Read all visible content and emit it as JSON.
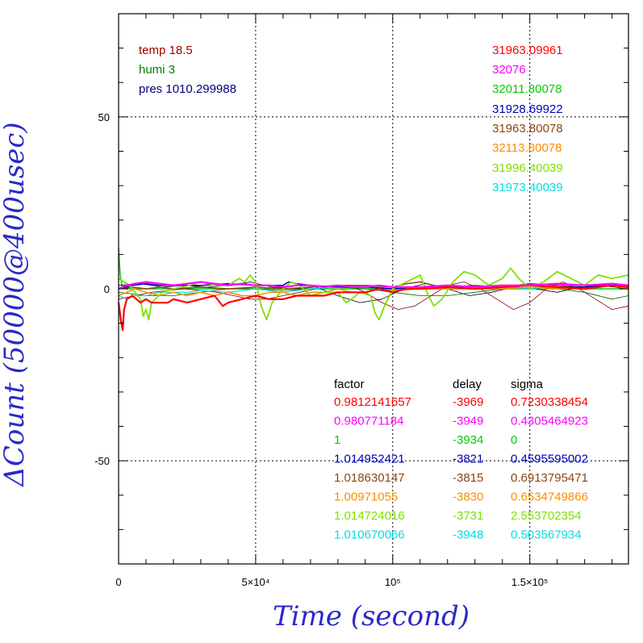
{
  "chart_data": {
    "type": "line",
    "xlabel": "Time (second)",
    "ylabel": "ΔCount (50000@400usec)",
    "xlim": [
      0,
      186000
    ],
    "ylim": [
      -80,
      80
    ],
    "grid": "dotted at labeled ticks",
    "x_ticks": [
      {
        "value": 0,
        "label": "0"
      },
      {
        "value": 50000,
        "label": "5×10⁴"
      },
      {
        "value": 100000,
        "label": "10⁵"
      },
      {
        "value": 150000,
        "label": "1.5×10⁵"
      }
    ],
    "y_ticks": [
      {
        "value": 50,
        "label": "50"
      },
      {
        "value": 0,
        "label": "0"
      },
      {
        "value": -50,
        "label": "-50"
      }
    ],
    "env": [
      {
        "text": "temp 18.5",
        "color": "#a00000"
      },
      {
        "text": "humi 3",
        "color": "#008000"
      },
      {
        "text": "pres 1010.299988",
        "color": "#000080"
      }
    ],
    "counts": [
      {
        "text": "31963.09961",
        "color": "#ff0000"
      },
      {
        "text": "32076",
        "color": "#ff00ff"
      },
      {
        "text": "32011.80078",
        "color": "#00cc00"
      },
      {
        "text": "31928.69922",
        "color": "#0000c0"
      },
      {
        "text": "31963.80078",
        "color": "#8b4513"
      },
      {
        "text": "32113.80078",
        "color": "#ff8c00"
      },
      {
        "text": "31996.40039",
        "color": "#7fe000"
      },
      {
        "text": "31973.40039",
        "color": "#00e0e0"
      }
    ],
    "table": {
      "headers": [
        "factor",
        "delay",
        "sigma"
      ],
      "rows": [
        {
          "factor": "0.9812141657",
          "delay": "-3969",
          "sigma": "0.7230338454",
          "color": "#ff0000"
        },
        {
          "factor": "0.980771184",
          "delay": "-3949",
          "sigma": "0.4305464923",
          "color": "#ff00ff"
        },
        {
          "factor": "1",
          "delay": "-3934",
          "sigma": "0",
          "color": "#00cc00"
        },
        {
          "factor": "1.014952421",
          "delay": "-3821",
          "sigma": "0.4595595002",
          "color": "#0000c0"
        },
        {
          "factor": "1.018630147",
          "delay": "-3815",
          "sigma": "0.6913795471",
          "color": "#8b4513"
        },
        {
          "factor": "1.00971055",
          "delay": "-3830",
          "sigma": "0.6534749866",
          "color": "#ff8c00"
        },
        {
          "factor": "1.014724016",
          "delay": "-3731",
          "sigma": "2.553702354",
          "color": "#7fe000"
        },
        {
          "factor": "1.010670066",
          "delay": "-3948",
          "sigma": "0.503567934",
          "color": "#00e0e0"
        }
      ]
    },
    "series": [
      {
        "color": "#00cc00",
        "width": 1.5,
        "x": [
          0,
          600,
          1200,
          2500,
          5000,
          10000,
          20000,
          35000,
          50000,
          70000,
          90000,
          110000,
          130000,
          150000,
          170000,
          186000
        ],
        "y": [
          12,
          4,
          1,
          0,
          0,
          0,
          0,
          0,
          0,
          0,
          0,
          0,
          0,
          0,
          0,
          0
        ]
      },
      {
        "color": "#000000",
        "width": 0.8,
        "x": [
          0,
          8000,
          16000,
          24000,
          32000,
          40000,
          48000,
          56000,
          64000,
          72000,
          80000,
          88000,
          96000,
          104000,
          112000,
          120000,
          128000,
          136000,
          144000,
          152000,
          160000,
          168000,
          176000,
          186000
        ],
        "y": [
          1,
          1.5,
          0.5,
          1,
          0.5,
          1,
          2,
          0.5,
          0,
          0.5,
          -2,
          -4,
          -3,
          0,
          1.5,
          0,
          -2,
          -1,
          0.5,
          0,
          -1,
          0.5,
          1,
          0
        ]
      },
      {
        "color": "#8b0000",
        "width": 0.8,
        "x": [
          0,
          6000,
          12000,
          18000,
          24000,
          30000,
          36000,
          42000,
          48000,
          54000,
          60000,
          66000,
          72000,
          78000,
          84000,
          90000,
          96000,
          102000,
          108000,
          114000,
          120000,
          126000,
          132000,
          138000,
          144000,
          150000,
          156000,
          162000,
          168000,
          174000,
          180000,
          186000
        ],
        "y": [
          -3,
          -2,
          -1,
          -0.5,
          0,
          -0.5,
          -1,
          -2,
          -3,
          -3,
          -2,
          -1,
          0,
          1,
          1,
          -1,
          -4,
          -6,
          -5,
          -2,
          1,
          2,
          0,
          -3,
          -6,
          -4,
          0,
          2,
          0,
          -3,
          -6,
          -5
        ]
      },
      {
        "color": "#006400",
        "width": 0.8,
        "x": [
          0,
          10000,
          20000,
          30000,
          40000,
          50000,
          60000,
          70000,
          80000,
          90000,
          100000,
          110000,
          120000,
          130000,
          140000,
          150000,
          160000,
          170000,
          180000,
          186000
        ],
        "y": [
          -1,
          -2,
          -2,
          -1,
          0,
          0,
          -0.5,
          0,
          0.5,
          0,
          -1,
          -2,
          -2,
          -1,
          0,
          1,
          0,
          -1,
          -3,
          -2
        ]
      },
      {
        "color": "#00e0e0",
        "width": 1.2,
        "x": [
          0,
          3000,
          6000,
          10000,
          15000,
          20000,
          25000,
          30000,
          40000,
          50000,
          60000,
          70000,
          80000,
          90000,
          100000,
          110000,
          120000,
          130000,
          140000,
          150000,
          160000,
          170000,
          180000,
          186000
        ],
        "y": [
          -2,
          -3,
          -2,
          -2,
          -1,
          -1,
          -1,
          -0.5,
          -1,
          0,
          -1,
          0,
          0.5,
          1,
          0,
          0,
          0.5,
          0,
          0.5,
          0,
          0.5,
          0,
          1,
          0.5
        ]
      },
      {
        "color": "#ff8c00",
        "width": 1.5,
        "x": [
          0,
          3000,
          6000,
          10000,
          15000,
          20000,
          25000,
          30000,
          35000,
          40000,
          45000,
          50000,
          55000,
          60000,
          65000,
          70000,
          75000,
          80000,
          85000,
          90000,
          95000,
          100000,
          110000,
          120000,
          130000,
          140000,
          150000,
          160000,
          170000,
          180000,
          186000
        ],
        "y": [
          -2,
          -1,
          0,
          -1,
          -2,
          -1,
          -2,
          -1,
          -2,
          -1,
          -2,
          -2,
          -1,
          -1,
          -2,
          -1,
          -1,
          0,
          -1,
          -1,
          0,
          -0.5,
          0,
          0,
          0.5,
          0,
          0.5,
          0,
          0.5,
          1,
          0
        ]
      },
      {
        "color": "#8b4513",
        "width": 1.5,
        "x": [
          0,
          5000,
          10000,
          15000,
          20000,
          30000,
          40000,
          50000,
          60000,
          70000,
          80000,
          90000,
          100000,
          105000,
          110000,
          115000,
          120000,
          130000,
          140000,
          150000,
          160000,
          170000,
          180000,
          186000
        ],
        "y": [
          0,
          0.5,
          0,
          0.5,
          0,
          0.5,
          0,
          0.5,
          0,
          0.5,
          1,
          1,
          0.5,
          1.5,
          2,
          1,
          0.5,
          1,
          0.5,
          1.5,
          1,
          0.5,
          1.5,
          1
        ]
      },
      {
        "color": "#0000c0",
        "width": 1.5,
        "x": [
          0,
          5000,
          10000,
          15000,
          20000,
          30000,
          40000,
          50000,
          60000,
          62000,
          65000,
          70000,
          80000,
          90000,
          100000,
          110000,
          120000,
          130000,
          140000,
          150000,
          160000,
          170000,
          180000,
          186000
        ],
        "y": [
          0,
          1,
          1.5,
          1,
          1,
          1,
          1.5,
          1,
          1,
          2,
          1.5,
          1,
          0.5,
          0.5,
          0,
          0.5,
          1,
          0,
          0.5,
          1,
          0.5,
          0.5,
          1,
          0.5
        ]
      },
      {
        "color": "#7fe000",
        "width": 1.8,
        "x": [
          0,
          4000,
          8000,
          9000,
          10000,
          11000,
          12000,
          16000,
          20000,
          26000,
          30000,
          36000,
          40000,
          44000,
          46000,
          48000,
          50000,
          52000,
          54000,
          56000,
          60000,
          63000,
          66000,
          70000,
          75000,
          80000,
          83000,
          85000,
          88000,
          92000,
          93500,
          95000,
          97000,
          100000,
          105000,
          110000,
          113000,
          115000,
          118000,
          122000,
          126000,
          130000,
          135000,
          140000,
          143000,
          146000,
          150000,
          155000,
          160000,
          165000,
          170000,
          175000,
          180000,
          186000
        ],
        "y": [
          3,
          1,
          -3,
          -8,
          -6,
          -9,
          -4,
          -1,
          0,
          1,
          2,
          1,
          1,
          3,
          2,
          4,
          2,
          -5,
          -9,
          -4,
          0,
          2,
          1,
          -2,
          -1,
          -1,
          -4,
          -3,
          -1,
          -2,
          -7,
          -9,
          -5,
          0,
          2,
          4,
          -2,
          -5,
          -3,
          2,
          5,
          4,
          1,
          3,
          6,
          3,
          0,
          2,
          5,
          3,
          1,
          4,
          3,
          4
        ]
      },
      {
        "color": "#ff0000",
        "width": 2.2,
        "x": [
          0,
          1000,
          1500,
          2000,
          3000,
          5000,
          8000,
          10000,
          12000,
          15000,
          18000,
          20000,
          25000,
          30000,
          35000,
          38000,
          40000,
          45000,
          50000,
          55000,
          60000,
          65000,
          70000,
          75000,
          80000,
          85000,
          90000,
          95000,
          100000,
          105000,
          110000,
          120000,
          130000,
          140000,
          150000,
          160000,
          170000,
          180000,
          186000
        ],
        "y": [
          -4,
          -10,
          -12,
          -6,
          -3,
          -2,
          -4,
          -3,
          -4,
          -4,
          -4,
          -3,
          -4,
          -3,
          -2,
          -5,
          -4,
          -3,
          -2,
          -3,
          -3,
          -2,
          -2,
          -2,
          -1,
          -1,
          -1,
          0,
          -1,
          0,
          0,
          0.5,
          0,
          0.5,
          1,
          0.5,
          0,
          1,
          0.5
        ]
      },
      {
        "color": "#ff00ff",
        "width": 2.2,
        "x": [
          0,
          3000,
          6000,
          10000,
          15000,
          20000,
          25000,
          30000,
          35000,
          40000,
          45000,
          50000,
          55000,
          60000,
          65000,
          70000,
          75000,
          80000,
          85000,
          90000,
          95000,
          100000,
          110000,
          120000,
          130000,
          140000,
          150000,
          160000,
          170000,
          180000,
          186000
        ],
        "y": [
          0,
          1,
          1.5,
          2,
          1.5,
          1,
          1.5,
          2,
          1.5,
          1,
          1.5,
          1,
          1,
          0.5,
          1,
          1,
          0.5,
          1,
          0.5,
          0.5,
          1,
          0.5,
          0.5,
          1,
          0.5,
          1,
          1,
          1.5,
          1,
          1.5,
          1
        ]
      }
    ]
  }
}
